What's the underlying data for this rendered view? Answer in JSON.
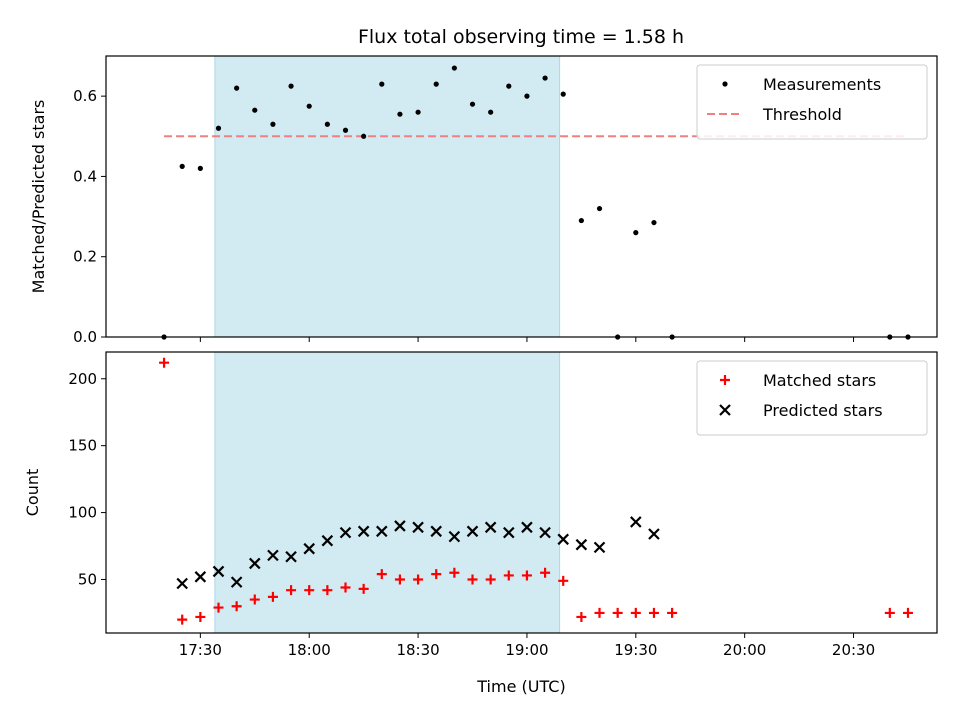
{
  "title": "Flux total observing time = 1.58 h",
  "colors": {
    "shade": "#add8e6",
    "measurement": "#000000",
    "threshold": "#f08080",
    "matched": "#ff0000",
    "predicted": "#000000"
  },
  "chart_data": [
    {
      "type": "scatter",
      "panel": "top",
      "ylabel": "Matched/Predicted stars",
      "xlim": [
        "17:04",
        "20:53"
      ],
      "ylim": [
        0,
        0.7
      ],
      "yticks": [
        0.0,
        0.2,
        0.4,
        0.6
      ],
      "ytick_labels": [
        "0.0",
        "0.2",
        "0.4",
        "0.6"
      ],
      "shaded_span": [
        "17:34",
        "19:09"
      ],
      "legend": "top-right",
      "threshold": {
        "name": "Threshold",
        "value": 0.5,
        "x_range": [
          "17:20",
          "20:45"
        ],
        "style": "dashed"
      },
      "series": [
        {
          "name": "Measurements",
          "marker": "dot",
          "x": [
            "17:20",
            "17:25",
            "17:30",
            "17:35",
            "17:40",
            "17:45",
            "17:50",
            "17:55",
            "18:00",
            "18:05",
            "18:10",
            "18:15",
            "18:20",
            "18:25",
            "18:30",
            "18:35",
            "18:40",
            "18:45",
            "18:50",
            "18:55",
            "19:00",
            "19:05",
            "19:10",
            "19:15",
            "19:20",
            "19:25",
            "19:30",
            "19:35",
            "19:40",
            "20:40",
            "20:45"
          ],
          "y": [
            0.0,
            0.425,
            0.42,
            0.52,
            0.62,
            0.565,
            0.53,
            0.625,
            0.575,
            0.53,
            0.515,
            0.5,
            0.63,
            0.555,
            0.56,
            0.63,
            0.67,
            0.58,
            0.56,
            0.625,
            0.6,
            0.645,
            0.605,
            0.29,
            0.32,
            0.0,
            0.26,
            0.285,
            0.0,
            0.0,
            0.0
          ]
        }
      ]
    },
    {
      "type": "scatter",
      "panel": "bottom",
      "xlabel": "Time (UTC)",
      "ylabel": "Count",
      "xlim": [
        "17:04",
        "20:53"
      ],
      "ylim": [
        10,
        220
      ],
      "yticks": [
        50,
        100,
        150,
        200
      ],
      "ytick_labels": [
        "50",
        "100",
        "150",
        "200"
      ],
      "xticks": [
        "17:30",
        "18:00",
        "18:30",
        "19:00",
        "19:30",
        "20:00",
        "20:30"
      ],
      "xtick_labels": [
        "17:30",
        "18:00",
        "18:30",
        "19:00",
        "19:30",
        "20:00",
        "20:30"
      ],
      "shaded_span": [
        "17:34",
        "19:09"
      ],
      "legend": "top-right",
      "series": [
        {
          "name": "Matched stars",
          "marker": "plus",
          "x": [
            "17:20",
            "17:25",
            "17:30",
            "17:35",
            "17:40",
            "17:45",
            "17:50",
            "17:55",
            "18:00",
            "18:05",
            "18:10",
            "18:15",
            "18:20",
            "18:25",
            "18:30",
            "18:35",
            "18:40",
            "18:45",
            "18:50",
            "18:55",
            "19:00",
            "19:05",
            "19:10",
            "19:15",
            "19:20",
            "19:25",
            "19:30",
            "19:35",
            "19:40",
            "20:40",
            "20:45"
          ],
          "y": [
            212,
            20,
            22,
            29,
            30,
            35,
            37,
            42,
            42,
            42,
            44,
            43,
            54,
            50,
            50,
            54,
            55,
            50,
            50,
            53,
            53,
            55,
            49,
            22,
            25,
            25,
            25,
            25,
            25,
            25,
            25
          ]
        },
        {
          "name": "Predicted stars",
          "marker": "x",
          "x": [
            "17:25",
            "17:30",
            "17:35",
            "17:40",
            "17:45",
            "17:50",
            "17:55",
            "18:00",
            "18:05",
            "18:10",
            "18:15",
            "18:20",
            "18:25",
            "18:30",
            "18:35",
            "18:40",
            "18:45",
            "18:50",
            "18:55",
            "19:00",
            "19:05",
            "19:10",
            "19:15",
            "19:20",
            "19:30",
            "19:35"
          ],
          "y": [
            47,
            52,
            56,
            48,
            62,
            68,
            67,
            73,
            79,
            85,
            86,
            86,
            90,
            89,
            86,
            82,
            86,
            89,
            85,
            89,
            85,
            80,
            76,
            74,
            93,
            84
          ]
        }
      ]
    }
  ]
}
